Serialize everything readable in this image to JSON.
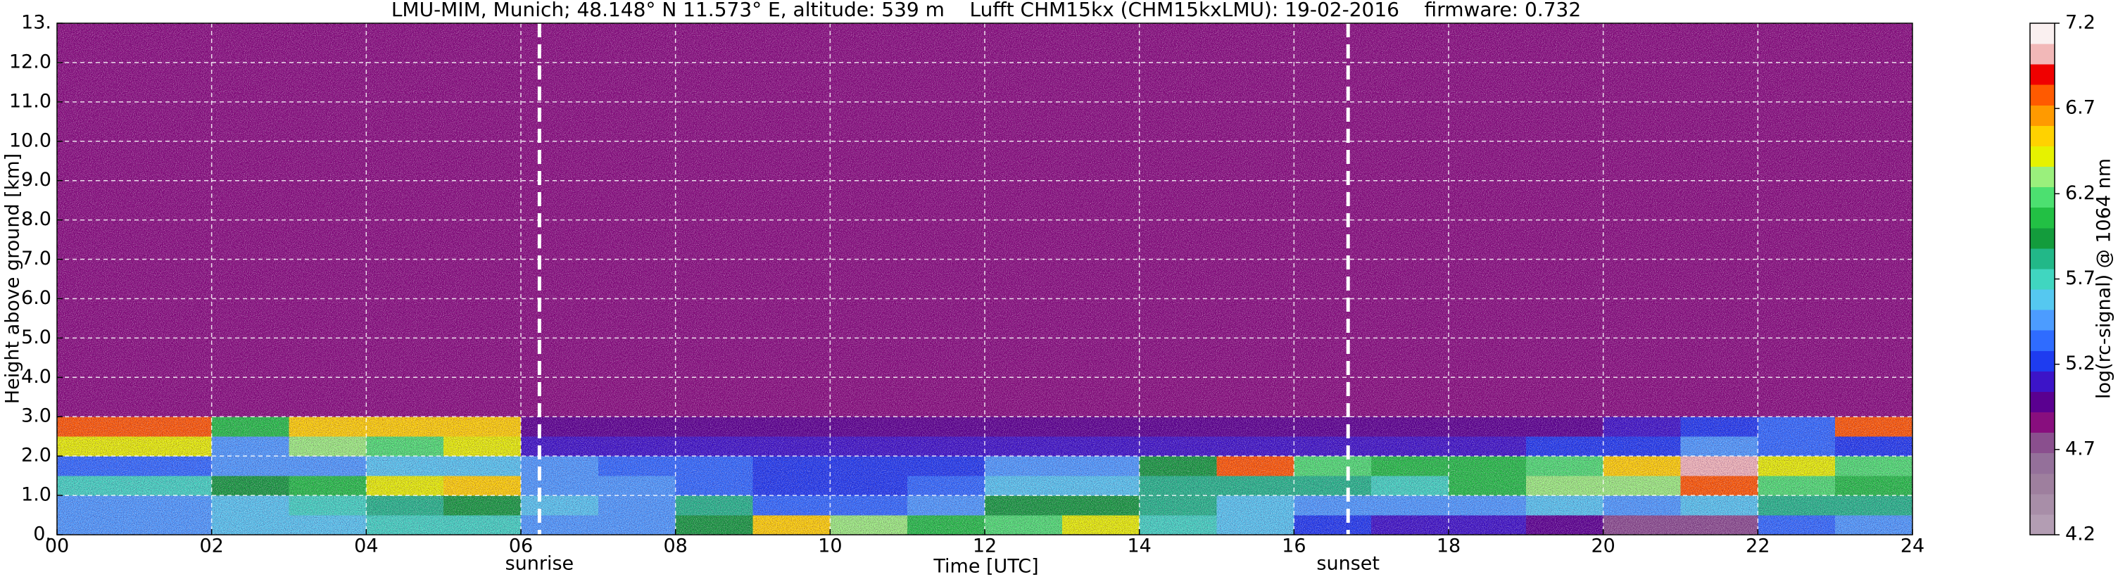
{
  "chart_data": {
    "type": "heatmap",
    "title": "LMU-MIM, Munich; 48.148° N 11.573° E, altitude: 539 m    Lufft CHM15kx (CHM15kxLMU): 19-02-2016    firmware: 0.732",
    "xlabel": "Time [UTC]",
    "ylabel": "Height above ground [km]",
    "colorbar_label": "log(rc-signal) @ 1064 nm",
    "x_edges": [
      0,
      1,
      2,
      3,
      4,
      5,
      6,
      7,
      8,
      9,
      10,
      11,
      12,
      13,
      14,
      15,
      16,
      17,
      18,
      19,
      20,
      21,
      22,
      23,
      24
    ],
    "y_edges": [
      0,
      0.5,
      1,
      1.5,
      2,
      2.5,
      3,
      13
    ],
    "z": [
      [
        5.5,
        5.5,
        5.6,
        5.6,
        5.7,
        5.7,
        5.5,
        5.5,
        5.9,
        6.5,
        6.3,
        6.0,
        6.2,
        6.4,
        5.7,
        5.6,
        5.2,
        5.1,
        5.1,
        5.0,
        4.8,
        4.8,
        5.3,
        5.4
      ],
      [
        5.5,
        5.5,
        5.6,
        5.7,
        5.8,
        5.9,
        5.6,
        5.5,
        5.8,
        5.3,
        5.3,
        5.4,
        5.9,
        5.9,
        5.8,
        5.6,
        5.4,
        5.4,
        5.5,
        5.6,
        5.5,
        5.6,
        5.8,
        5.8
      ],
      [
        5.7,
        5.7,
        5.9,
        6.0,
        6.4,
        6.5,
        5.5,
        5.4,
        5.3,
        5.2,
        5.2,
        5.3,
        5.6,
        5.6,
        5.8,
        5.8,
        5.8,
        5.7,
        6.1,
        6.3,
        6.3,
        6.8,
        6.2,
        6.0
      ],
      [
        5.3,
        5.3,
        5.4,
        5.4,
        5.6,
        5.6,
        5.4,
        5.3,
        5.3,
        5.2,
        5.2,
        5.2,
        5.5,
        5.5,
        5.9,
        6.8,
        6.2,
        6.0,
        6.0,
        6.2,
        6.5,
        7.0,
        6.4,
        6.2
      ],
      [
        6.4,
        6.4,
        5.4,
        6.3,
        6.2,
        6.4,
        5.1,
        5.1,
        5.1,
        5.1,
        5.1,
        5.1,
        5.1,
        5.1,
        5.1,
        5.1,
        5.1,
        5.1,
        5.1,
        5.2,
        5.2,
        5.5,
        5.3,
        5.2
      ],
      [
        6.8,
        6.8,
        6.0,
        6.6,
        6.6,
        6.6,
        5.0,
        5.0,
        5.0,
        5.0,
        5.0,
        5.0,
        5.0,
        5.0,
        5.0,
        5.0,
        5.0,
        5.0,
        5.0,
        5.0,
        5.1,
        5.2,
        5.3,
        6.8
      ],
      [
        4.9,
        4.9,
        4.9,
        4.9,
        4.9,
        4.9,
        4.9,
        4.9,
        4.9,
        4.9,
        4.9,
        4.9,
        4.9,
        4.9,
        4.9,
        4.9,
        4.9,
        4.9,
        4.9,
        4.9,
        4.9,
        4.9,
        4.9,
        4.9
      ]
    ],
    "clim": [
      4.2,
      7.2
    ],
    "cticks": [
      4.2,
      4.7,
      5.2,
      5.7,
      6.2,
      6.7,
      7.2
    ],
    "colormap": [
      "#b39db3",
      "#a88ea8",
      "#9e7f9e",
      "#94709a",
      "#8a4f8e",
      "#880e7e",
      "#5a0090",
      "#3c14c8",
      "#1e3cf0",
      "#2f6cff",
      "#4c9cff",
      "#55c8f0",
      "#40d6c0",
      "#22b888",
      "#139c3c",
      "#22c044",
      "#4ce070",
      "#9af07c",
      "#e6f200",
      "#ffd200",
      "#ff9a00",
      "#ff5a00",
      "#f00000",
      "#f2b8b8",
      "#faf0f0"
    ],
    "xlim": [
      0,
      24
    ],
    "xticks": [
      {
        "value": 0,
        "label": "00"
      },
      {
        "value": 2,
        "label": "02"
      },
      {
        "value": 4,
        "label": "04"
      },
      {
        "value": 6,
        "label": "06"
      },
      {
        "value": 8,
        "label": "08"
      },
      10,
      12,
      14,
      16,
      18,
      20,
      22,
      24
    ],
    "ylim": [
      0,
      13
    ],
    "yticks": [
      {
        "value": 0,
        "label": "0."
      },
      {
        "value": 1,
        "label": "1.0"
      },
      {
        "value": 2,
        "label": "2.0"
      },
      {
        "value": 3,
        "label": "3.0"
      },
      {
        "value": 4,
        "label": "4.0"
      },
      {
        "value": 5,
        "label": "5.0"
      },
      {
        "value": 6,
        "label": "6.0"
      },
      {
        "value": 7,
        "label": "7.0"
      },
      {
        "value": 8,
        "label": "8.0"
      },
      {
        "value": 9,
        "label": "9.0"
      },
      {
        "value": 10,
        "label": "10.0"
      },
      {
        "value": 11,
        "label": "11.0"
      },
      {
        "value": 12,
        "label": "12.0"
      },
      {
        "value": 13,
        "label": "13."
      }
    ],
    "grid": true,
    "annotations": [
      {
        "x": 6.24,
        "label": "sunrise"
      },
      {
        "x": 16.7,
        "label": "sunset"
      }
    ]
  }
}
